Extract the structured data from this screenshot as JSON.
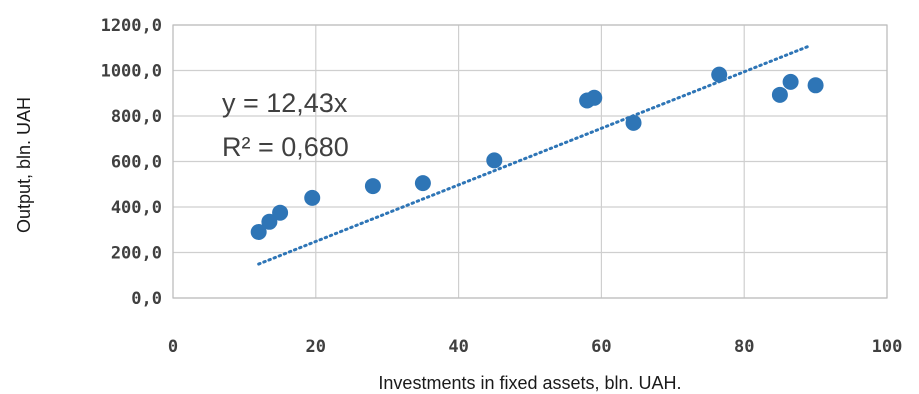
{
  "chart_data": {
    "type": "scatter",
    "xlabel": "Investments in fixed assets, bln. UAH.",
    "ylabel": "Output, bln. UAH",
    "xlim": [
      0,
      100
    ],
    "ylim": [
      0,
      1200
    ],
    "x_ticks": [
      "0",
      "20",
      "40",
      "60",
      "80",
      "100"
    ],
    "y_ticks": [
      "0,0",
      "200,0",
      "400,0",
      "600,0",
      "800,0",
      "1000,0",
      "1200,0"
    ],
    "grid": true,
    "series": [
      {
        "points": [
          {
            "x": 12,
            "y": 290
          },
          {
            "x": 13.5,
            "y": 335
          },
          {
            "x": 15,
            "y": 375
          },
          {
            "x": 19.5,
            "y": 440
          },
          {
            "x": 28,
            "y": 492
          },
          {
            "x": 35,
            "y": 505
          },
          {
            "x": 45,
            "y": 605
          },
          {
            "x": 58,
            "y": 868
          },
          {
            "x": 59,
            "y": 880
          },
          {
            "x": 64.5,
            "y": 770
          },
          {
            "x": 76.5,
            "y": 982
          },
          {
            "x": 85,
            "y": 893
          },
          {
            "x": 86.5,
            "y": 950
          },
          {
            "x": 90,
            "y": 935
          }
        ]
      }
    ],
    "trendline": {
      "equation": "y = 12,43x",
      "r_squared": "R² = 0,680",
      "slope": 12.43,
      "x_start": 12,
      "x_end": 89,
      "style": "dotted"
    },
    "colors": {
      "marker": "#2e75b6",
      "trendline": "#2e75b6"
    }
  }
}
